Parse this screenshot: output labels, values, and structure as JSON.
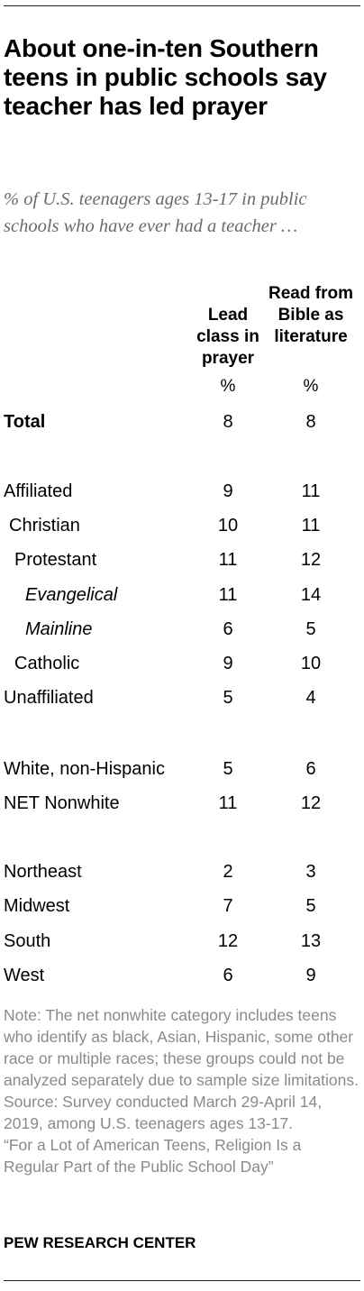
{
  "header": {
    "title": "About one-in-ten Southern teens in public schools say teacher has led prayer",
    "subtitle": "% of U.S. teenagers ages 13-17 in public schools who have ever had a teacher …"
  },
  "chart_data": {
    "type": "table",
    "columns": [
      "Lead class in prayer",
      "Read from Bible as literature"
    ],
    "unit_row": [
      "%",
      "%"
    ],
    "rows": [
      {
        "label": "Total",
        "values": [
          "8",
          "8"
        ]
      },
      {
        "label": "Affiliated",
        "values": [
          "9",
          "11"
        ]
      },
      {
        "label": "Christian",
        "values": [
          "10",
          "11"
        ]
      },
      {
        "label": "Protestant",
        "values": [
          "11",
          "12"
        ]
      },
      {
        "label": "Evangelical",
        "values": [
          "11",
          "14"
        ]
      },
      {
        "label": "Mainline",
        "values": [
          "6",
          "5"
        ]
      },
      {
        "label": "Catholic",
        "values": [
          "9",
          "10"
        ]
      },
      {
        "label": "Unaffiliated",
        "values": [
          "5",
          "4"
        ]
      },
      {
        "label": "White, non-Hispanic",
        "values": [
          "5",
          "6"
        ]
      },
      {
        "label": "NET Nonwhite",
        "values": [
          "11",
          "12"
        ]
      },
      {
        "label": "Northeast",
        "values": [
          "2",
          "3"
        ]
      },
      {
        "label": "Midwest",
        "values": [
          "7",
          "5"
        ]
      },
      {
        "label": "South",
        "values": [
          "12",
          "13"
        ]
      },
      {
        "label": "West",
        "values": [
          "6",
          "9"
        ]
      }
    ]
  },
  "notes": {
    "note": "Note: The net nonwhite category includes teens who identify as black, Asian, Hispanic, some other race or multiple races; these groups could not be analyzed separately due to sample size limitations.",
    "source": "Source: Survey conducted March 29-April 14, 2019, among U.S. teenagers ages 13-17.",
    "report": "“For a Lot of American Teens, Religion Is a Regular Part of the Public School Day”"
  },
  "footer": {
    "brand": "PEW RESEARCH CENTER"
  }
}
